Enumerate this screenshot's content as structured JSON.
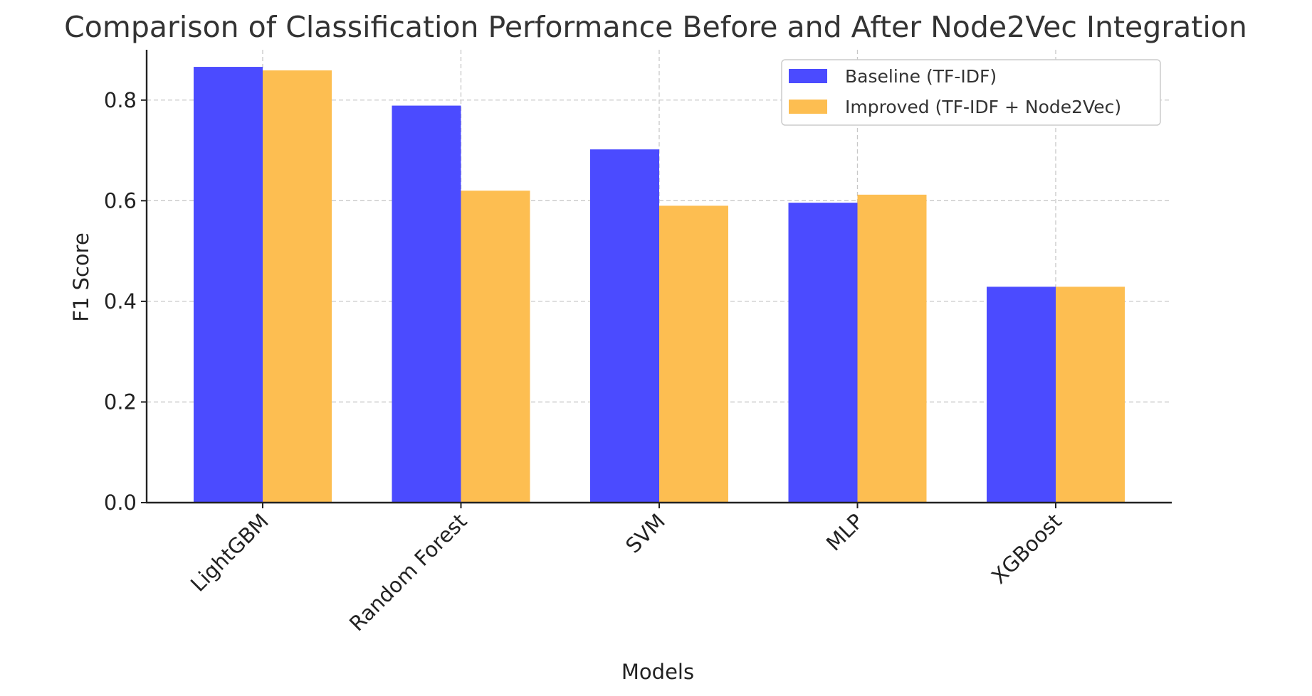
{
  "chart_data": {
    "type": "bar",
    "title": "Comparison of Classification Performance Before and After Node2Vec Integration",
    "xlabel": "Models",
    "ylabel": "F1 Score",
    "categories": [
      "LightGBM",
      "Random Forest",
      "SVM",
      "MLP",
      "XGBoost"
    ],
    "series": [
      {
        "name": "Baseline (TF-IDF)",
        "color": "#4b4bff",
        "values": [
          0.866,
          0.789,
          0.702,
          0.596,
          0.429
        ]
      },
      {
        "name": "Improved (TF-IDF + Node2Vec)",
        "color": "#fdbe51",
        "values": [
          0.859,
          0.62,
          0.59,
          0.612,
          0.429
        ]
      }
    ],
    "ylim": [
      0,
      0.9
    ],
    "yticks": [
      "0.0",
      "0.2",
      "0.4",
      "0.6",
      "0.8"
    ],
    "grid": true,
    "legend_position": "top-right"
  }
}
